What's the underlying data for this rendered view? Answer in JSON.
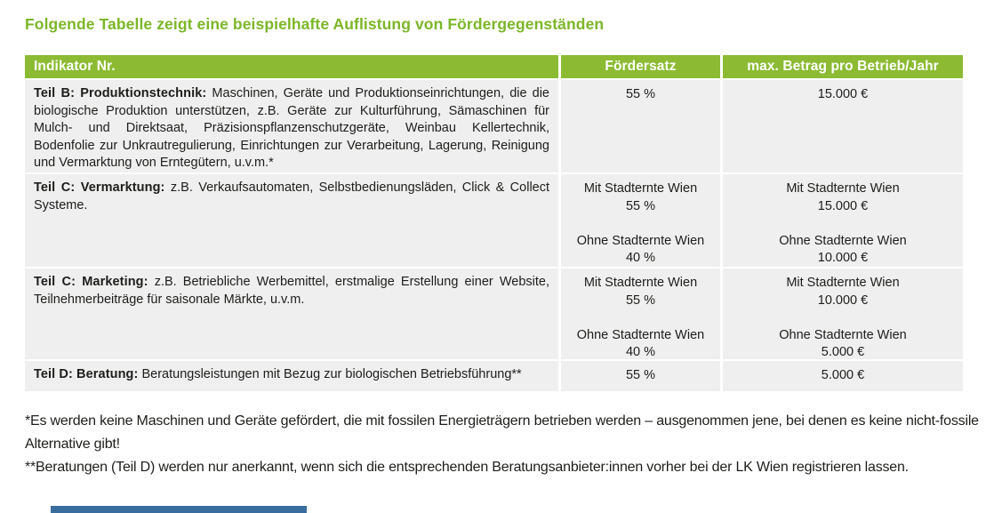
{
  "title": "Folgende Tabelle zeigt eine beispielhafte Auflistung von Fördergegenständen",
  "table": {
    "columns": [
      "Indikator Nr.",
      "Fördersatz",
      "max. Betrag pro Betrieb/Jahr"
    ],
    "rows": [
      {
        "lead": "Teil B: Produktionstechnik:",
        "text": "Maschinen, Geräte und Produktionseinrichtungen, die die biologische Produktion unterstützen, z.B. Geräte zur Kulturführung, Sämaschinen für Mulch- und Direktsaat, Präzisionspflanzenschutzgeräte, Weinbau Kellertechnik, Bodenfolie zur Unkrautregulierung, Einrichtungen zur Verarbeitung, Lagerung, Reinigung und Vermarktung von Erntegütern, u.v.m.*",
        "foerdersatz": "55 %",
        "betrag": "15.000 €"
      },
      {
        "lead": "Teil C: Vermarktung:",
        "text": "z.B. Verkaufsautomaten, Selbstbedienungsläden, Click & Collect Systeme.",
        "foerdersatz": "Mit Stadternte Wien\n55 %\n\nOhne Stadternte Wien\n40 %",
        "betrag": "Mit Stadternte Wien\n15.000 €\n\nOhne Stadternte Wien\n10.000 €"
      },
      {
        "lead": "Teil C: Marketing:",
        "text": "z.B. Betriebliche Werbemittel, erstmalige Erstellung einer Website, Teilnehmerbeiträge für saisonale Märkte, u.v.m.",
        "foerdersatz": "Mit Stadternte Wien\n55 %\n\nOhne Stadternte Wien\n40 %",
        "betrag": "Mit Stadternte Wien\n10.000 €\n\nOhne Stadternte Wien\n5.000 €"
      },
      {
        "lead": "Teil D: Beratung:",
        "text": "Beratungsleistungen mit Bezug zur biologischen Betriebsführung**",
        "foerdersatz": "55 %",
        "betrag": "5.000 €"
      }
    ]
  },
  "footnotes": [
    "*Es werden keine Maschinen und Geräte gefördert, die mit fossilen Energieträgern betrieben werden – ausgenommen jene, bei denen es keine nicht-fossile Alternative gibt!",
    "**Beratungen (Teil D) werden nur anerkannt, wenn sich die entsprechenden Beratungsanbieter:innen vorher bei der LK Wien registrieren lassen."
  ],
  "colors": {
    "title_green": "#7cb629",
    "header_green": "#8cbb33",
    "row_gray": "#efefef",
    "bottom_bar_blue": "#3a6d9e"
  }
}
